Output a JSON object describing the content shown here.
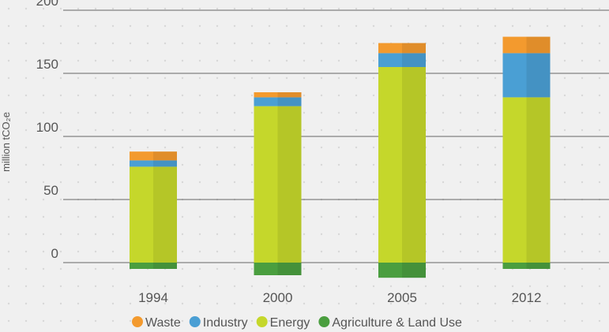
{
  "chart_data": {
    "type": "stacked_bar",
    "y_label": "million tCO₂e",
    "categories": [
      "1994",
      "2000",
      "2005",
      "2012"
    ],
    "series": [
      {
        "name": "Waste",
        "color": "#f39a2e",
        "values": [
          7,
          4,
          8,
          13
        ]
      },
      {
        "name": "Industry",
        "color": "#4a9fd4",
        "values": [
          5,
          7,
          11,
          35
        ]
      },
      {
        "name": "Energy",
        "color": "#c5d72b",
        "values": [
          76,
          124,
          155,
          131
        ]
      },
      {
        "name": "Agriculture & Land Use",
        "color": "#4a9e3f",
        "values": [
          -5,
          -10,
          -12,
          -5
        ]
      }
    ],
    "ylim": [
      -20,
      200
    ],
    "yticks": [
      0,
      50,
      100,
      150,
      200
    ],
    "grid": true
  }
}
